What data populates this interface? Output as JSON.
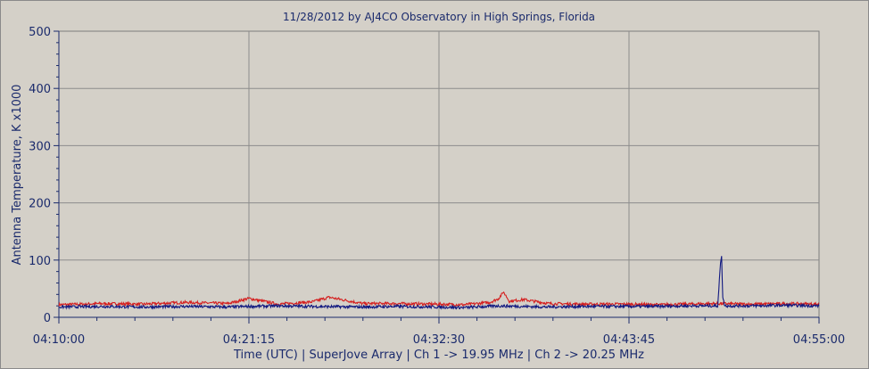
{
  "chart_data": {
    "type": "line",
    "title": "11/28/2012  by  AJ4CO Observatory  in  High Springs, Florida",
    "xlabel": "Time (UTC)  |  SuperJove Array  |  Ch 1 -> 19.95 MHz  |  Ch 2 -> 20.25 MHz",
    "ylabel": "Antenna Temperature, K x1000",
    "x_ticks": [
      "04:10:00",
      "04:21:15",
      "04:32:30",
      "04:43:45",
      "04:55:00"
    ],
    "y_ticks": [
      0,
      100,
      200,
      300,
      400,
      500
    ],
    "xlim": [
      "04:10:00",
      "04:55:00"
    ],
    "ylim": [
      0,
      500
    ],
    "grid": true,
    "series": [
      {
        "color": "#d42020",
        "baseline": 23,
        "points": [
          [
            "04:10:00",
            22
          ],
          [
            "04:12:30",
            24
          ],
          [
            "04:15:00",
            23
          ],
          [
            "04:17:30",
            26
          ],
          [
            "04:20:00",
            24
          ],
          [
            "04:21:15",
            33
          ],
          [
            "04:23:00",
            23
          ],
          [
            "04:25:00",
            27
          ],
          [
            "04:26:00",
            35
          ],
          [
            "04:28:00",
            24
          ],
          [
            "04:30:00",
            24
          ],
          [
            "04:32:30",
            23
          ],
          [
            "04:34:00",
            22
          ],
          [
            "04:35:30",
            26
          ],
          [
            "04:36:00",
            32
          ],
          [
            "04:36:20",
            44
          ],
          [
            "04:36:40",
            28
          ],
          [
            "04:37:30",
            31
          ],
          [
            "04:39:00",
            24
          ],
          [
            "04:41:00",
            23
          ],
          [
            "04:43:45",
            23
          ],
          [
            "04:45:30",
            22
          ],
          [
            "04:47:00",
            23
          ],
          [
            "04:49:00",
            24
          ],
          [
            "04:51:00",
            23
          ],
          [
            "04:53:00",
            24
          ],
          [
            "04:55:00",
            23
          ]
        ]
      },
      {
        "color": "#101880",
        "baseline": 19,
        "points": [
          [
            "04:10:00",
            18
          ],
          [
            "04:12:30",
            19
          ],
          [
            "04:15:00",
            18
          ],
          [
            "04:17:30",
            19
          ],
          [
            "04:20:00",
            18
          ],
          [
            "04:21:15",
            19
          ],
          [
            "04:23:00",
            20
          ],
          [
            "04:25:00",
            19
          ],
          [
            "04:28:00",
            18
          ],
          [
            "04:30:00",
            19
          ],
          [
            "04:32:30",
            18
          ],
          [
            "04:34:00",
            17
          ],
          [
            "04:36:00",
            20
          ],
          [
            "04:37:30",
            19
          ],
          [
            "04:39:00",
            18
          ],
          [
            "04:41:00",
            19
          ],
          [
            "04:43:45",
            19
          ],
          [
            "04:45:30",
            19
          ],
          [
            "04:47:00",
            20
          ],
          [
            "04:49:00",
            20
          ],
          [
            "04:49:10",
            95
          ],
          [
            "04:49:14",
            107
          ],
          [
            "04:49:18",
            35
          ],
          [
            "04:49:25",
            20
          ],
          [
            "04:51:00",
            20
          ],
          [
            "04:53:00",
            21
          ],
          [
            "04:55:00",
            20
          ]
        ]
      }
    ]
  }
}
